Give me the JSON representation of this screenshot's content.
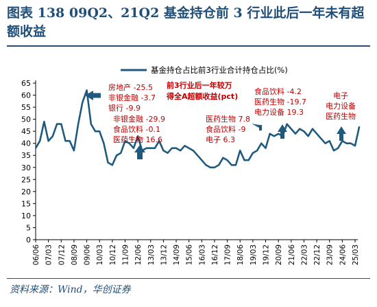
{
  "figure": {
    "title": "图表 138   09Q2、21Q2 基金持仓前 3 行业此后一年未有超额收益",
    "source": "资料来源：Wind，华创证券"
  },
  "colors": {
    "line": "#1f5a7e",
    "annotation": "#c00000",
    "title": "#1f4e79",
    "arrow": "#1f5a7e"
  },
  "chart_data": {
    "type": "line",
    "title": "",
    "xlabel": "",
    "ylabel": "",
    "ylim": [
      0,
      65
    ],
    "yticks": [
      0,
      5,
      10,
      15,
      20,
      25,
      30,
      35,
      40,
      45,
      50,
      55,
      60,
      65
    ],
    "xtick_labels": [
      "06/06",
      "07/03",
      "07/12",
      "08/09",
      "09/06",
      "10/03",
      "10/12",
      "11/09",
      "12/06",
      "13/03",
      "13/12",
      "14/09",
      "15/06",
      "16/03",
      "16/12",
      "17/09",
      "18/06",
      "19/03",
      "19/12",
      "20/09",
      "21/06",
      "22/03",
      "22/12",
      "23/09",
      "24/06",
      "25/03"
    ],
    "legend": {
      "position": "top",
      "entries": [
        "基金持仓占比前3行业合计持仓占比(%)"
      ]
    },
    "series": [
      {
        "name": "基金持仓占比前3行业合计持仓占比(%)",
        "x": [
          "06/06",
          "06/09",
          "06/12",
          "07/03",
          "07/06",
          "07/09",
          "07/12",
          "08/03",
          "08/06",
          "08/09",
          "08/12",
          "09/03",
          "09/06",
          "09/09",
          "09/12",
          "10/03",
          "10/06",
          "10/09",
          "10/12",
          "11/03",
          "11/06",
          "11/09",
          "11/12",
          "12/03",
          "12/06",
          "12/09",
          "12/12",
          "13/03",
          "13/06",
          "13/09",
          "13/12",
          "14/03",
          "14/06",
          "14/09",
          "14/12",
          "15/03",
          "15/06",
          "15/09",
          "15/12",
          "16/03",
          "16/06",
          "16/09",
          "16/12",
          "17/03",
          "17/06",
          "17/09",
          "17/12",
          "18/03",
          "18/06",
          "18/09",
          "18/12",
          "19/03",
          "19/06",
          "19/09",
          "19/12",
          "20/03",
          "20/06",
          "20/09",
          "20/12",
          "21/03",
          "21/06",
          "21/09",
          "21/12",
          "22/03",
          "22/06",
          "22/09",
          "22/12",
          "23/03",
          "23/06",
          "23/09",
          "23/12",
          "24/03",
          "24/06",
          "24/09",
          "24/12",
          "25/03",
          "25/06"
        ],
        "values": [
          38,
          41,
          49,
          41,
          43,
          48,
          48,
          41,
          41,
          37,
          48,
          57,
          62,
          48,
          45,
          45,
          40,
          32,
          31,
          35,
          36,
          41,
          40,
          38,
          43,
          37,
          38,
          38,
          38,
          41,
          37,
          36,
          38,
          38,
          37,
          39,
          38,
          37,
          35,
          33,
          31,
          30,
          30,
          31,
          34,
          33,
          31,
          31,
          37,
          33,
          33,
          36,
          37,
          40,
          38,
          44,
          43,
          44,
          43,
          48,
          46,
          44,
          46,
          45,
          43,
          46,
          44,
          42,
          40,
          41,
          37,
          38,
          41,
          40,
          40,
          39,
          47
        ]
      }
    ],
    "annotations": [
      {
        "lines": [
          "房地产  -25.5",
          "非银金融  -3.7",
          "银行  -9.9"
        ]
      },
      {
        "lines": [
          "前3行业后一年较万",
          "得全A超额收益(pct)"
        ]
      },
      {
        "lines": [
          "非银金融  -29.9",
          "食品饮料  -0.1",
          "医药生物  16.6"
        ]
      },
      {
        "lines": [
          "医药生物  7.8",
          "食品饮料  -9",
          "电子  6.3"
        ]
      },
      {
        "lines": [
          "食品饮料  -4.2",
          "医药生物  -19.7",
          "电力设备  19.3"
        ]
      },
      {
        "lines": [
          "电子",
          "电力设备",
          "医药生物"
        ]
      }
    ]
  }
}
